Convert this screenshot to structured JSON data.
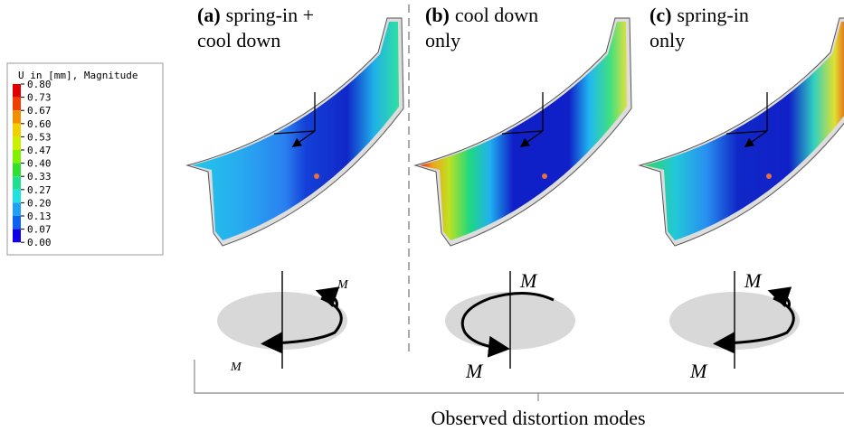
{
  "legend": {
    "title": "U in [mm], Magnitude",
    "labels": [
      "0.80",
      "0.73",
      "0.67",
      "0.60",
      "0.53",
      "0.47",
      "0.40",
      "0.33",
      "0.27",
      "0.20",
      "0.13",
      "0.07",
      "0.00"
    ]
  },
  "panels": [
    {
      "label": "(a)",
      "title_lines": [
        "spring-in +",
        "cool down"
      ],
      "moment_labels": [
        "M",
        "M"
      ]
    },
    {
      "label": "(b)",
      "title_lines": [
        "cool down",
        "only"
      ],
      "moment_labels": [
        "M",
        "M"
      ]
    },
    {
      "label": "(c)",
      "title_lines": [
        "spring-in",
        "only"
      ],
      "moment_labels": [
        "M",
        "M"
      ]
    }
  ],
  "caption": "Observed distortion modes"
}
